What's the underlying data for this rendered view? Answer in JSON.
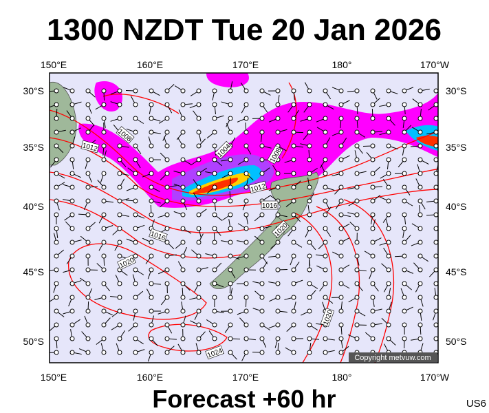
{
  "header": {
    "title": "1300 NZDT Tue 20 Jan 2026"
  },
  "axes": {
    "longitudes": [
      "150°E",
      "160°E",
      "170°E",
      "180°",
      "170°W"
    ],
    "latitudes": [
      "30°S",
      "35°S",
      "40°S",
      "45°S",
      "50°S"
    ]
  },
  "isobar_labels": [
    1008,
    1012,
    1004,
    1008,
    1012,
    1016,
    1020,
    1016,
    1020,
    1020,
    1024
  ],
  "copyright": "Copyright metvuw.com",
  "footer": {
    "forecast": "Forecast +60 hr",
    "code": "US6"
  }
}
